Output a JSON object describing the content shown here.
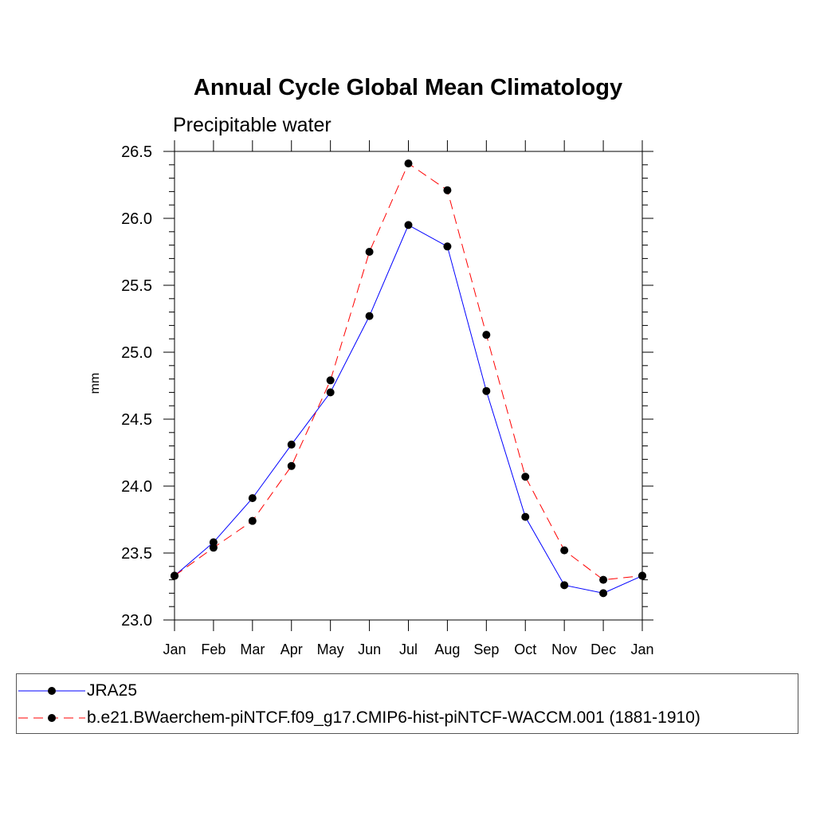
{
  "chart_data": {
    "type": "line",
    "title": "Annual Cycle Global Mean Climatology",
    "subtitle": "Precipitable water",
    "xlabel": "",
    "ylabel": "mm",
    "categories": [
      "Jan",
      "Feb",
      "Mar",
      "Apr",
      "May",
      "Jun",
      "Jul",
      "Aug",
      "Sep",
      "Oct",
      "Nov",
      "Dec",
      "Jan"
    ],
    "ylim": [
      23.0,
      26.5
    ],
    "yticks": [
      "23.0",
      "23.5",
      "24.0",
      "24.5",
      "25.0",
      "25.5",
      "26.0",
      "26.5"
    ],
    "series": [
      {
        "name": "JRA25",
        "color": "#0000ff",
        "dash": "solid",
        "values": [
          23.33,
          23.58,
          23.91,
          24.31,
          24.7,
          25.27,
          25.95,
          25.79,
          24.71,
          23.77,
          23.26,
          23.2,
          23.33
        ]
      },
      {
        "name": "b.e21.BWaerchem-piNTCF.f09_g17.CMIP6-hist-piNTCF-WACCM.001 (1881-1910)",
        "color": "#ff0000",
        "dash": "dashed",
        "values": [
          23.33,
          23.54,
          23.74,
          24.15,
          24.79,
          25.75,
          26.41,
          26.21,
          25.13,
          24.07,
          23.52,
          23.3,
          23.33
        ]
      }
    ]
  }
}
